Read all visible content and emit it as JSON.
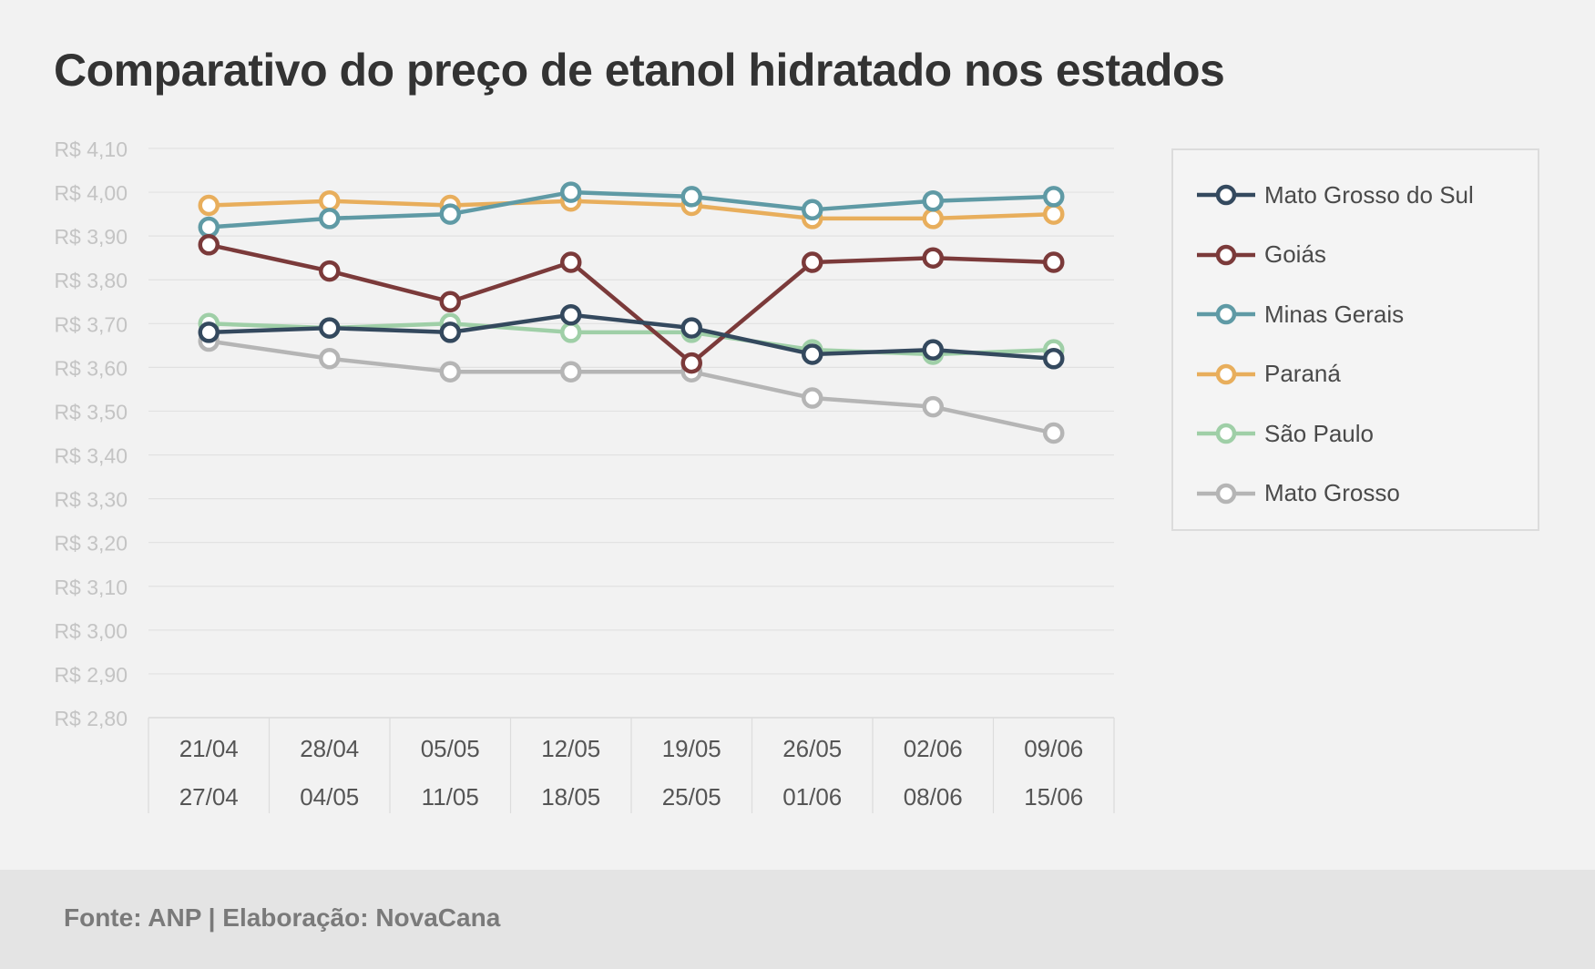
{
  "chart_data": {
    "type": "line",
    "title": "Comparativo do preço de etanol hidratado nos estados",
    "x": [
      "21/04 27/04",
      "28/04 04/05",
      "05/05 11/05",
      "12/05 18/05",
      "19/05 25/05",
      "26/05 01/06",
      "02/06 08/06",
      "09/06 15/06"
    ],
    "x_tick_labels": [
      [
        "21/04",
        "27/04"
      ],
      [
        "28/04",
        "04/05"
      ],
      [
        "05/05",
        "11/05"
      ],
      [
        "12/05",
        "18/05"
      ],
      [
        "19/05",
        "25/05"
      ],
      [
        "26/05",
        "01/06"
      ],
      [
        "02/06",
        "08/06"
      ],
      [
        "09/06",
        "15/06"
      ]
    ],
    "y_ticks": [
      4.1,
      4.0,
      3.9,
      3.8,
      3.7,
      3.6,
      3.5,
      3.4,
      3.3,
      3.2,
      3.1,
      3.0,
      2.9,
      2.8
    ],
    "y_tick_labels": [
      "R$ 4,10",
      "R$ 4,00",
      "R$ 3,90",
      "R$ 3,80",
      "R$ 3,70",
      "R$ 3,60",
      "R$ 3,50",
      "R$ 3,40",
      "R$ 3,30",
      "R$ 3,20",
      "R$ 3,10",
      "R$ 3,00",
      "R$ 2,90",
      "R$ 2,80"
    ],
    "ylim": [
      2.8,
      4.1
    ],
    "grid": true,
    "legend_position": "right",
    "series": [
      {
        "name": "Mato Grosso do Sul",
        "color": "#34495e",
        "values": [
          3.68,
          3.69,
          3.68,
          3.72,
          3.69,
          3.63,
          3.64,
          3.62
        ]
      },
      {
        "name": "Goiás",
        "color": "#7b3a3a",
        "values": [
          3.88,
          3.82,
          3.75,
          3.84,
          3.61,
          3.84,
          3.85,
          3.84
        ]
      },
      {
        "name": "Minas Gerais",
        "color": "#5f9aa5",
        "values": [
          3.92,
          3.94,
          3.95,
          4.0,
          3.99,
          3.96,
          3.98,
          3.99
        ]
      },
      {
        "name": "Paraná",
        "color": "#e8ae5c",
        "values": [
          3.97,
          3.98,
          3.97,
          3.98,
          3.97,
          3.94,
          3.94,
          3.95
        ]
      },
      {
        "name": "São Paulo",
        "color": "#9fcfa7",
        "values": [
          3.7,
          3.69,
          3.7,
          3.68,
          3.68,
          3.64,
          3.63,
          3.64
        ]
      },
      {
        "name": "Mato Grosso",
        "color": "#b5b5b5",
        "values": [
          3.66,
          3.62,
          3.59,
          3.59,
          3.59,
          3.53,
          3.51,
          3.45
        ]
      }
    ]
  },
  "footer": {
    "source": "Fonte: ANP | Elaboração: NovaCana"
  }
}
